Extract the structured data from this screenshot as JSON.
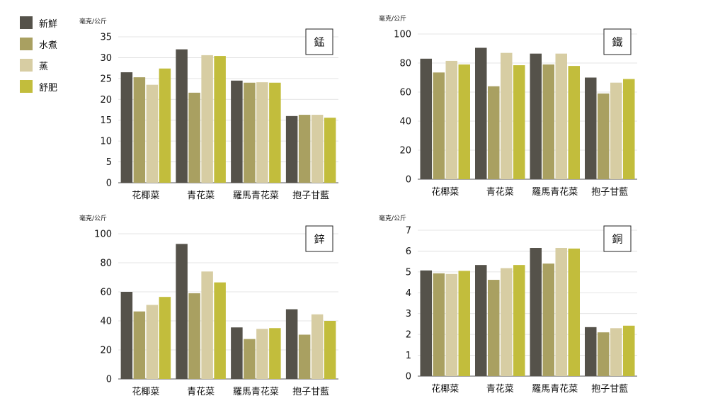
{
  "legend": [
    {
      "label": "新鮮",
      "color": "#55524a"
    },
    {
      "label": "水煮",
      "color": "#a9a061"
    },
    {
      "label": "蒸",
      "color": "#d7cda3"
    },
    {
      "label": "舒肥",
      "color": "#c2bd3c"
    }
  ],
  "chart_data": [
    {
      "type": "bar",
      "title": "錳",
      "ylabel": "毫克/公斤",
      "ylim": [
        0,
        35
      ],
      "yticks": [
        0,
        5,
        10,
        15,
        20,
        25,
        30,
        35
      ],
      "categories": [
        "花椰菜",
        "青花菜",
        "羅馬青花菜",
        "抱子甘藍"
      ],
      "series": [
        {
          "name": "新鮮",
          "values": [
            26.5,
            32.0,
            24.5,
            16.0
          ]
        },
        {
          "name": "水煮",
          "values": [
            25.3,
            21.6,
            24.0,
            16.3
          ]
        },
        {
          "name": "蒸",
          "values": [
            23.5,
            30.6,
            24.1,
            16.3
          ]
        },
        {
          "name": "舒肥",
          "values": [
            27.4,
            30.4,
            24.0,
            15.6
          ]
        }
      ]
    },
    {
      "type": "bar",
      "title": "鐵",
      "ylabel": "毫克/公斤",
      "ylim": [
        0,
        100
      ],
      "yticks": [
        0,
        20,
        40,
        60,
        80,
        100
      ],
      "categories": [
        "花椰菜",
        "青花菜",
        "羅馬青花菜",
        "抱子甘藍"
      ],
      "series": [
        {
          "name": "新鮮",
          "values": [
            83,
            90.5,
            86.5,
            70
          ]
        },
        {
          "name": "水煮",
          "values": [
            73.5,
            64,
            79,
            59
          ]
        },
        {
          "name": "蒸",
          "values": [
            81.5,
            87,
            86.5,
            66.5
          ]
        },
        {
          "name": "舒肥",
          "values": [
            79,
            78.5,
            78,
            69
          ]
        }
      ]
    },
    {
      "type": "bar",
      "title": "鋅",
      "ylabel": "毫克/公斤",
      "ylim": [
        0,
        100
      ],
      "yticks": [
        0,
        20,
        40,
        60,
        80,
        100
      ],
      "categories": [
        "花椰菜",
        "青花菜",
        "羅馬青花菜",
        "抱子甘藍"
      ],
      "series": [
        {
          "name": "新鮮",
          "values": [
            60,
            93,
            35.5,
            48
          ]
        },
        {
          "name": "水煮",
          "values": [
            46.5,
            59,
            27.5,
            30.5
          ]
        },
        {
          "name": "蒸",
          "values": [
            51,
            74,
            34.5,
            44.5
          ]
        },
        {
          "name": "舒肥",
          "values": [
            56.5,
            66.5,
            35,
            40
          ]
        }
      ]
    },
    {
      "type": "bar",
      "title": "銅",
      "ylabel": "毫克/公斤",
      "ylim": [
        0,
        7
      ],
      "yticks": [
        0,
        1,
        2,
        3,
        4,
        5,
        6,
        7
      ],
      "categories": [
        "花椰菜",
        "青花菜",
        "羅馬青花菜",
        "抱子甘藍"
      ],
      "series": [
        {
          "name": "新鮮",
          "values": [
            5.07,
            5.33,
            6.15,
            2.35
          ]
        },
        {
          "name": "水煮",
          "values": [
            4.93,
            4.62,
            5.4,
            2.1
          ]
        },
        {
          "name": "蒸",
          "values": [
            4.9,
            5.18,
            6.15,
            2.3
          ]
        },
        {
          "name": "舒肥",
          "values": [
            5.05,
            5.33,
            6.12,
            2.42
          ]
        }
      ]
    }
  ]
}
